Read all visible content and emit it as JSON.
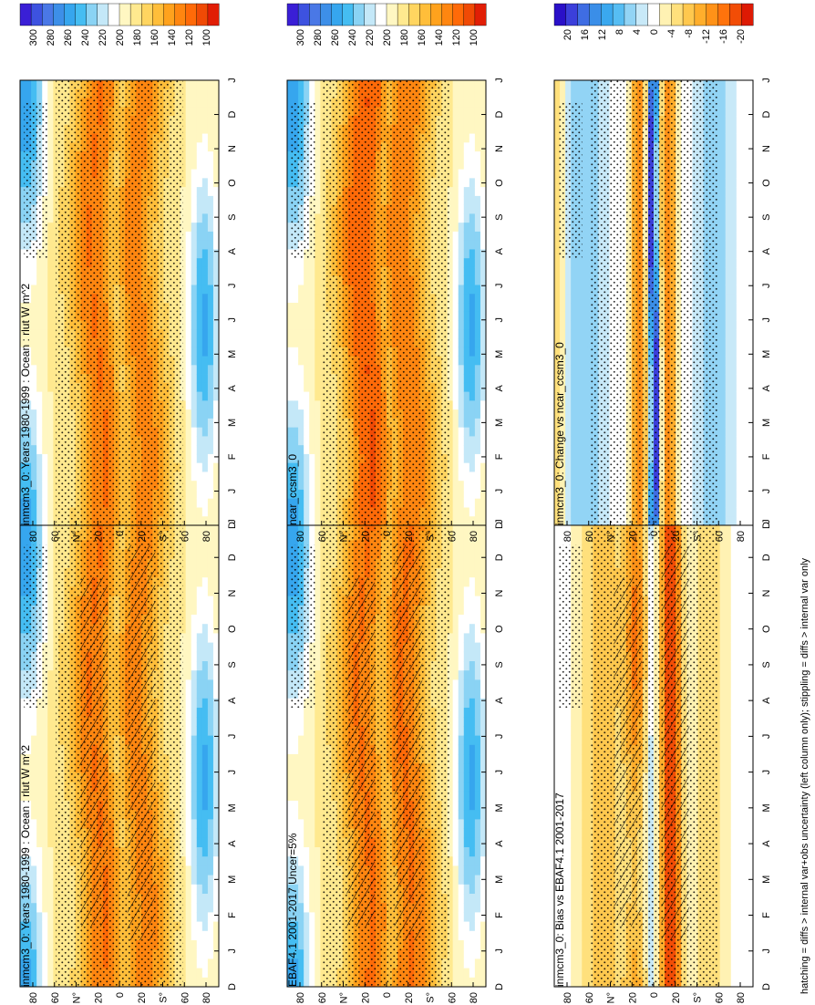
{
  "footnote": "hatching = diffs > internal var+obs uncertainty (left column only); stippling = diffs > internal var only",
  "colors": {
    "abs_scale": [
      "#3a1fd6",
      "#3d52e0",
      "#4a78e6",
      "#3d8fe8",
      "#36a6ee",
      "#45bdf2",
      "#8ad3f4",
      "#c4e8f8",
      "#ffffff",
      "#fff7c2",
      "#ffe98f",
      "#ffd560",
      "#ffbe3a",
      "#ffa21d",
      "#ff8610",
      "#ff6a08",
      "#f04a05",
      "#e11e05"
    ],
    "diff_scale": [
      "#2a10c8",
      "#3b3fdb",
      "#3f6de3",
      "#3a8ee8",
      "#3aa8ef",
      "#56bdf3",
      "#92d4f5",
      "#c8e9f8",
      "#ffffff",
      "#fff2b3",
      "#ffe07c",
      "#ffc84e",
      "#ffae2c",
      "#ff9218",
      "#ff730c",
      "#f24d06",
      "#dd1a04"
    ]
  },
  "chart_data": [
    {
      "type": "heatmap",
      "panel": "top-left",
      "title": "inmcm3_0: Years 1980-1999 : Ocean : rlut W m^2",
      "x_ticks": [
        "D",
        "J",
        "F",
        "M",
        "A",
        "M",
        "J",
        "J",
        "A",
        "S",
        "O",
        "N",
        "D",
        "J"
      ],
      "y_ticks": [
        "80",
        "60",
        "N°",
        "20",
        "0",
        "20",
        "S°",
        "60",
        "80"
      ],
      "colorbar": [
        "300",
        "280",
        "260",
        "240",
        "220",
        "200",
        "180",
        "160",
        "140",
        "120",
        "100"
      ],
      "hatching": true,
      "stippling": true
    },
    {
      "type": "heatmap",
      "panel": "top-right",
      "title": "inmcm3_0: Years 1980-1999 : Ocean : rlut W m^2",
      "x_ticks": [
        "D",
        "J",
        "F",
        "M",
        "A",
        "M",
        "J",
        "J",
        "A",
        "S",
        "O",
        "N",
        "D",
        "J"
      ],
      "y_ticks": [
        "80",
        "60",
        "N°",
        "20",
        "0",
        "20",
        "S°",
        "60",
        "80"
      ],
      "colorbar": [
        "300",
        "280",
        "260",
        "240",
        "220",
        "200",
        "180",
        "160",
        "140",
        "120",
        "100"
      ],
      "hatching": false,
      "stippling": true
    },
    {
      "type": "heatmap",
      "panel": "middle-left",
      "title": "EBAF4.1 2001-2017 Uncer=5%",
      "x_ticks": [
        "D",
        "J",
        "F",
        "M",
        "A",
        "M",
        "J",
        "J",
        "A",
        "S",
        "O",
        "N",
        "D",
        "J"
      ],
      "y_ticks": [
        "80",
        "60",
        "N°",
        "20",
        "0",
        "20",
        "S°",
        "60",
        "80"
      ],
      "colorbar": [
        "300",
        "280",
        "260",
        "240",
        "220",
        "200",
        "180",
        "160",
        "140",
        "120",
        "100"
      ],
      "hatching": true,
      "stippling": true
    },
    {
      "type": "heatmap",
      "panel": "middle-right",
      "title": "ncar_ccsm3_0",
      "x_ticks": [
        "D",
        "J",
        "F",
        "M",
        "A",
        "M",
        "J",
        "J",
        "A",
        "S",
        "O",
        "N",
        "D",
        "J"
      ],
      "y_ticks": [
        "80",
        "60",
        "N°",
        "20",
        "0",
        "20",
        "S°",
        "60",
        "80"
      ],
      "colorbar": [
        "300",
        "280",
        "260",
        "240",
        "220",
        "200",
        "180",
        "160",
        "140",
        "120",
        "100"
      ],
      "hatching": false,
      "stippling": true
    },
    {
      "type": "heatmap",
      "panel": "bottom-left",
      "title": "inmcm3_0: Bias vs EBAF4.1 2001-2017",
      "x_ticks": [
        "D",
        "J",
        "F",
        "M",
        "A",
        "M",
        "J",
        "J",
        "A",
        "S",
        "O",
        "N",
        "D",
        "J"
      ],
      "y_ticks": [
        "80",
        "60",
        "N°",
        "20",
        "0",
        "20",
        "S°",
        "60",
        "80"
      ],
      "colorbar": [
        "20",
        "16",
        "12",
        "8",
        "4",
        "0",
        "-4",
        "-8",
        "-12",
        "-16",
        "-20"
      ],
      "hatching": true,
      "stippling": true
    },
    {
      "type": "heatmap",
      "panel": "bottom-right",
      "title": "inmcm3_0: Change vs ncar_ccsm3_0",
      "x_ticks": [
        "D",
        "J",
        "F",
        "M",
        "A",
        "M",
        "J",
        "J",
        "A",
        "S",
        "O",
        "N",
        "D",
        "J"
      ],
      "y_ticks": [
        "80",
        "60",
        "N°",
        "20",
        "0",
        "20",
        "S°",
        "60",
        "80"
      ],
      "colorbar": [
        "20",
        "16",
        "12",
        "8",
        "4",
        "0",
        "-4",
        "-8",
        "-12",
        "-16",
        "-20"
      ],
      "hatching": false,
      "stippling": true
    }
  ]
}
